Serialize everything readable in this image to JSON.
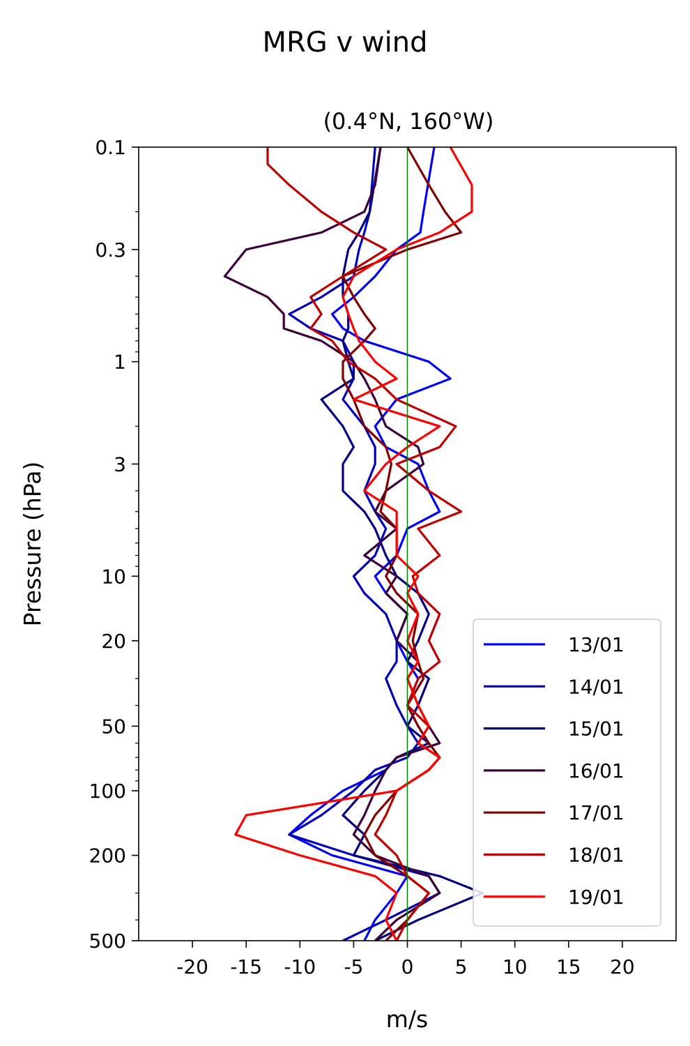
{
  "chart_data": {
    "type": "line",
    "title": "MRG v wind",
    "subtitle": "(0.4°N, 160°W)",
    "xlabel": "m/s",
    "ylabel": "Pressure (hPa)",
    "xlim": [
      -25,
      25
    ],
    "ylim": [
      500,
      0.1
    ],
    "yscale": "log",
    "x_ticks": [
      -20,
      -15,
      -10,
      -5,
      0,
      5,
      10,
      15,
      20
    ],
    "x_tick_labels": [
      "-20",
      "-15",
      "-10",
      "-5",
      "0",
      "5",
      "10",
      "15",
      "20"
    ],
    "y_ticks": [
      0.1,
      0.3,
      1,
      3,
      10,
      20,
      50,
      100,
      200,
      500
    ],
    "y_tick_labels": [
      "0.1",
      "0.3",
      "1",
      "3",
      "10",
      "20",
      "50",
      "100",
      "200",
      "500"
    ],
    "reference_line": {
      "x": 0,
      "color": "#008000"
    },
    "legend_position": "lower-right",
    "series": [
      {
        "name": "13/01",
        "color": "#0000ff",
        "pressure": [
          0.1,
          0.2,
          0.25,
          0.3,
          0.4,
          0.5,
          0.6,
          0.7,
          0.8,
          1.0,
          1.2,
          1.5,
          2,
          2.5,
          3,
          4,
          5,
          6,
          8,
          10,
          12,
          15,
          20,
          25,
          30,
          40,
          50,
          60,
          70,
          80,
          100,
          130,
          160,
          200,
          250,
          300,
          400,
          500
        ],
        "v": [
          2.5,
          1.5,
          1.2,
          -1,
          -3,
          -5,
          -7,
          -6,
          -4,
          2,
          4,
          -1,
          -3,
          -2,
          1,
          2,
          3,
          0,
          -1,
          -3,
          -2,
          0,
          -1,
          0,
          1,
          0,
          1,
          2,
          -1,
          -2,
          -6,
          -9,
          -11,
          -7,
          0,
          -1,
          -3,
          -4
        ]
      },
      {
        "name": "14/01",
        "color": "#0000bb",
        "pressure": [
          0.1,
          0.2,
          0.25,
          0.3,
          0.4,
          0.5,
          0.6,
          0.7,
          0.8,
          1.0,
          1.2,
          1.5,
          2,
          2.5,
          3,
          4,
          5,
          6,
          8,
          10,
          12,
          15,
          20,
          25,
          30,
          40,
          50,
          60,
          70,
          80,
          100,
          130,
          160,
          200,
          250,
          300,
          400,
          500
        ],
        "v": [
          -3,
          -3.5,
          -4,
          -4.5,
          -5,
          -8,
          -11,
          -9,
          -6,
          -5,
          -5,
          -6,
          -4,
          -3,
          -3,
          -4,
          -3,
          -2,
          -3,
          -5,
          -4,
          -2,
          -1,
          -1,
          -2,
          -1,
          0,
          1,
          0,
          -3,
          -5,
          -8,
          -11,
          -5,
          2,
          3,
          -2,
          -6
        ]
      },
      {
        "name": "15/01",
        "color": "#000080",
        "pressure": [
          0.1,
          0.2,
          0.25,
          0.3,
          0.4,
          0.5,
          0.6,
          0.7,
          0.8,
          1.0,
          1.2,
          1.5,
          2,
          2.5,
          3,
          4,
          5,
          6,
          8,
          10,
          12,
          15,
          20,
          25,
          30,
          40,
          50,
          60,
          70,
          80,
          100,
          130,
          160,
          200,
          250,
          300,
          400,
          500
        ],
        "v": [
          -2.5,
          -3.5,
          -4.5,
          -5.5,
          -6,
          -6,
          -5.5,
          -5.5,
          -6,
          -5.5,
          -5,
          -8,
          -6,
          -5,
          -6,
          -6,
          -4,
          -3,
          -2,
          -1,
          1,
          2,
          1,
          0,
          2,
          1,
          0,
          2,
          -1,
          -2,
          -4,
          -6,
          -4,
          -5,
          3,
          7,
          1,
          -3
        ]
      },
      {
        "name": "16/01",
        "color": "#3d003d",
        "pressure": [
          0.1,
          0.15,
          0.2,
          0.25,
          0.3,
          0.4,
          0.5,
          0.6,
          0.7,
          0.8,
          1.0,
          1.2,
          1.5,
          2,
          2.5,
          3,
          4,
          5,
          6,
          8,
          10,
          12,
          15,
          20,
          25,
          30,
          40,
          50,
          60,
          70,
          80,
          100,
          130,
          160,
          200,
          250,
          300,
          400,
          500
        ],
        "v": [
          -2.5,
          -3,
          -4,
          -8,
          -15,
          -17,
          -13,
          -11.5,
          -11.5,
          -8,
          -5,
          -4,
          -3,
          -2,
          1,
          1.5,
          -2,
          -3,
          -1,
          -4,
          -1,
          -2,
          0,
          -1,
          1,
          0,
          1,
          2,
          3,
          -1,
          -2,
          -3,
          -4,
          -5,
          -3,
          2,
          3,
          -1,
          -3
        ]
      },
      {
        "name": "17/01",
        "color": "#800000",
        "pressure": [
          0.1,
          0.15,
          0.2,
          0.25,
          0.3,
          0.4,
          0.5,
          0.6,
          0.7,
          0.8,
          1.0,
          1.2,
          1.5,
          2,
          2.5,
          3,
          4,
          5,
          6,
          8,
          10,
          12,
          15,
          20,
          25,
          30,
          40,
          50,
          60,
          70,
          80,
          100,
          130,
          160,
          200,
          250,
          300,
          400,
          500
        ],
        "v": [
          0,
          2,
          3.5,
          5,
          0,
          -6,
          -5,
          -4,
          -3,
          -4,
          -6,
          -6,
          -5,
          -4,
          -2,
          -1.5,
          -2,
          -2.5,
          -1,
          -1,
          -2,
          -1,
          1,
          0.5,
          1,
          1.5,
          0,
          1,
          2,
          3,
          2,
          -1,
          -3,
          -4,
          -3,
          0,
          2,
          0,
          -2
        ]
      },
      {
        "name": "18/01",
        "color": "#bb0000",
        "pressure": [
          0.1,
          0.12,
          0.15,
          0.2,
          0.25,
          0.3,
          0.4,
          0.5,
          0.6,
          0.7,
          0.8,
          1.0,
          1.2,
          1.5,
          2,
          2.5,
          3,
          4,
          5,
          6,
          8,
          10,
          12,
          15,
          20,
          25,
          30,
          40,
          50,
          60,
          70,
          80,
          100,
          130,
          160,
          200,
          250,
          300,
          400,
          500
        ],
        "v": [
          -13,
          -13,
          -11,
          -8,
          -5,
          -2,
          -6,
          -9,
          -8,
          -9,
          -7,
          -5.5,
          -3,
          -1,
          4.5,
          3,
          -1,
          2,
          5,
          1,
          3,
          0.5,
          1,
          3,
          2,
          3,
          1,
          0,
          2,
          1,
          3,
          2,
          -1,
          -2,
          -3,
          -1,
          0,
          2,
          0,
          -1
        ]
      },
      {
        "name": "19/01",
        "color": "#ff0000",
        "pressure": [
          0.1,
          0.15,
          0.2,
          0.25,
          0.3,
          0.4,
          0.5,
          0.6,
          0.7,
          0.8,
          1.0,
          1.2,
          1.5,
          2,
          2.5,
          3,
          4,
          5,
          6,
          8,
          10,
          12,
          15,
          20,
          25,
          30,
          40,
          50,
          60,
          70,
          80,
          100,
          130,
          160,
          200,
          250,
          300,
          400,
          500
        ],
        "v": [
          4,
          6,
          6,
          3,
          -1,
          -5,
          -6,
          -5.5,
          -5,
          -4.5,
          -3,
          -1,
          -5,
          3,
          0,
          -2,
          -4,
          -1,
          -1,
          -1,
          1,
          0,
          1,
          0,
          1,
          0,
          1,
          2,
          1,
          3,
          2,
          -1,
          -15,
          -16,
          -10,
          -3,
          -1,
          -2,
          -1
        ]
      }
    ]
  }
}
